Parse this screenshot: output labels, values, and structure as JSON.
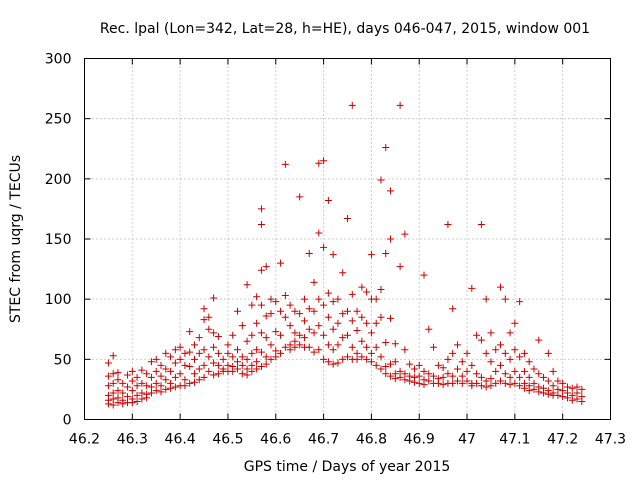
{
  "chart_data": {
    "type": "scatter",
    "title": "Rec. lpal (Lon=342, Lat=28, h=HE), days 046-047, 2015, window 001",
    "xlabel": "GPS time / Days of year 2015",
    "ylabel": "STEC from uqrg / TECUs",
    "xlim": [
      46.2,
      47.3
    ],
    "ylim": [
      0,
      300
    ],
    "xticks": [
      "46.2",
      "46.3",
      "46.4",
      "46.5",
      "46.6",
      "46.7",
      "46.8",
      "46.9",
      "47",
      "47.1",
      "47.2",
      "47.3"
    ],
    "yticks": [
      "0",
      "50",
      "100",
      "150",
      "200",
      "250",
      "300"
    ],
    "grid": true,
    "marker": "plus",
    "color": "#cc0000",
    "points": [
      [
        46.25,
        47
      ],
      [
        46.26,
        53
      ],
      [
        46.25,
        36
      ],
      [
        46.25,
        28
      ],
      [
        46.25,
        20
      ],
      [
        46.25,
        16
      ],
      [
        46.25,
        13
      ],
      [
        46.26,
        38
      ],
      [
        46.26,
        30
      ],
      [
        46.26,
        22
      ],
      [
        46.26,
        17
      ],
      [
        46.26,
        12
      ],
      [
        46.27,
        39
      ],
      [
        46.27,
        33
      ],
      [
        46.27,
        24
      ],
      [
        46.27,
        18
      ],
      [
        46.27,
        14
      ],
      [
        46.28,
        30
      ],
      [
        46.28,
        22
      ],
      [
        46.28,
        16
      ],
      [
        46.28,
        13
      ],
      [
        46.29,
        37
      ],
      [
        46.29,
        27
      ],
      [
        46.29,
        19
      ],
      [
        46.29,
        14
      ],
      [
        46.3,
        40
      ],
      [
        46.3,
        32
      ],
      [
        46.3,
        24
      ],
      [
        46.3,
        17
      ],
      [
        46.3,
        14
      ],
      [
        46.31,
        35
      ],
      [
        46.31,
        28
      ],
      [
        46.31,
        20
      ],
      [
        46.31,
        15
      ],
      [
        46.32,
        41
      ],
      [
        46.32,
        30
      ],
      [
        46.32,
        22
      ],
      [
        46.32,
        17
      ],
      [
        46.33,
        38
      ],
      [
        46.33,
        28
      ],
      [
        46.33,
        21
      ],
      [
        46.33,
        18
      ],
      [
        46.34,
        48
      ],
      [
        46.34,
        35
      ],
      [
        46.34,
        27
      ],
      [
        46.34,
        22
      ],
      [
        46.35,
        50
      ],
      [
        46.35,
        40
      ],
      [
        46.35,
        30
      ],
      [
        46.35,
        24
      ],
      [
        46.36,
        45
      ],
      [
        46.36,
        36
      ],
      [
        46.36,
        28
      ],
      [
        46.36,
        23
      ],
      [
        46.37,
        55
      ],
      [
        46.37,
        42
      ],
      [
        46.37,
        33
      ],
      [
        46.37,
        25
      ],
      [
        46.38,
        52
      ],
      [
        46.38,
        40
      ],
      [
        46.38,
        30
      ],
      [
        46.38,
        26
      ],
      [
        46.39,
        58
      ],
      [
        46.39,
        47
      ],
      [
        46.39,
        35
      ],
      [
        46.39,
        27
      ],
      [
        46.4,
        60
      ],
      [
        46.4,
        50
      ],
      [
        46.4,
        38
      ],
      [
        46.4,
        28
      ],
      [
        46.41,
        55
      ],
      [
        46.41,
        45
      ],
      [
        46.41,
        33
      ],
      [
        46.41,
        28
      ],
      [
        46.42,
        73
      ],
      [
        46.42,
        56
      ],
      [
        46.42,
        44
      ],
      [
        46.42,
        30
      ],
      [
        46.43,
        62
      ],
      [
        46.43,
        50
      ],
      [
        46.43,
        38
      ],
      [
        46.43,
        31
      ],
      [
        46.44,
        68
      ],
      [
        46.44,
        55
      ],
      [
        46.44,
        42
      ],
      [
        46.44,
        33
      ],
      [
        46.45,
        92
      ],
      [
        46.45,
        83
      ],
      [
        46.45,
        58
      ],
      [
        46.45,
        45
      ],
      [
        46.45,
        35
      ],
      [
        46.46,
        85
      ],
      [
        46.46,
        75
      ],
      [
        46.46,
        52
      ],
      [
        46.46,
        40
      ],
      [
        46.47,
        101
      ],
      [
        46.47,
        72
      ],
      [
        46.47,
        60
      ],
      [
        46.47,
        47
      ],
      [
        46.47,
        37
      ],
      [
        46.48,
        69
      ],
      [
        46.48,
        55
      ],
      [
        46.48,
        45
      ],
      [
        46.48,
        38
      ],
      [
        46.49,
        50
      ],
      [
        46.49,
        42
      ],
      [
        46.49,
        40
      ],
      [
        46.5,
        62
      ],
      [
        46.5,
        55
      ],
      [
        46.5,
        45
      ],
      [
        46.5,
        40
      ],
      [
        46.51,
        70
      ],
      [
        46.51,
        52
      ],
      [
        46.51,
        44
      ],
      [
        46.51,
        40
      ],
      [
        46.52,
        90
      ],
      [
        46.52,
        58
      ],
      [
        46.52,
        48
      ],
      [
        46.52,
        42
      ],
      [
        46.53,
        78
      ],
      [
        46.53,
        52
      ],
      [
        46.53,
        45
      ],
      [
        46.53,
        38
      ],
      [
        46.54,
        112
      ],
      [
        46.54,
        65
      ],
      [
        46.54,
        50
      ],
      [
        46.54,
        42
      ],
      [
        46.54,
        37
      ],
      [
        46.55,
        95
      ],
      [
        46.55,
        70
      ],
      [
        46.55,
        55
      ],
      [
        46.55,
        45
      ],
      [
        46.55,
        40
      ],
      [
        46.56,
        102
      ],
      [
        46.56,
        80
      ],
      [
        46.56,
        58
      ],
      [
        46.56,
        48
      ],
      [
        46.56,
        42
      ],
      [
        46.57,
        175
      ],
      [
        46.57,
        162
      ],
      [
        46.57,
        124
      ],
      [
        46.57,
        95
      ],
      [
        46.57,
        72
      ],
      [
        46.57,
        56
      ],
      [
        46.57,
        44
      ],
      [
        46.58,
        127
      ],
      [
        46.58,
        86
      ],
      [
        46.58,
        68
      ],
      [
        46.58,
        52
      ],
      [
        46.58,
        46
      ],
      [
        46.59,
        100
      ],
      [
        46.59,
        88
      ],
      [
        46.59,
        62
      ],
      [
        46.59,
        50
      ],
      [
        46.6,
        98
      ],
      [
        46.6,
        73
      ],
      [
        46.6,
        57
      ],
      [
        46.6,
        52
      ],
      [
        46.61,
        130
      ],
      [
        46.61,
        90
      ],
      [
        46.61,
        70
      ],
      [
        46.61,
        55
      ],
      [
        46.62,
        212
      ],
      [
        46.62,
        103
      ],
      [
        46.62,
        85
      ],
      [
        46.62,
        60
      ],
      [
        46.63,
        95
      ],
      [
        46.63,
        78
      ],
      [
        46.63,
        62
      ],
      [
        46.63,
        58
      ],
      [
        46.64,
        90
      ],
      [
        46.64,
        72
      ],
      [
        46.64,
        65
      ],
      [
        46.64,
        60
      ],
      [
        46.65,
        185
      ],
      [
        46.65,
        88
      ],
      [
        46.65,
        70
      ],
      [
        46.65,
        62
      ],
      [
        46.66,
        100
      ],
      [
        46.66,
        82
      ],
      [
        46.66,
        68
      ],
      [
        46.66,
        60
      ],
      [
        46.67,
        138
      ],
      [
        46.67,
        92
      ],
      [
        46.67,
        75
      ],
      [
        46.67,
        60
      ],
      [
        46.68,
        114
      ],
      [
        46.68,
        90
      ],
      [
        46.68,
        72
      ],
      [
        46.68,
        56
      ],
      [
        46.69,
        213
      ],
      [
        46.69,
        155
      ],
      [
        46.69,
        100
      ],
      [
        46.69,
        78
      ],
      [
        46.69,
        58
      ],
      [
        46.7,
        215
      ],
      [
        46.7,
        143
      ],
      [
        46.7,
        95
      ],
      [
        46.7,
        70
      ],
      [
        46.7,
        50
      ],
      [
        46.71,
        182
      ],
      [
        46.71,
        105
      ],
      [
        46.71,
        85
      ],
      [
        46.71,
        62
      ],
      [
        46.71,
        48
      ],
      [
        46.72,
        137
      ],
      [
        46.72,
        98
      ],
      [
        46.72,
        75
      ],
      [
        46.72,
        58
      ],
      [
        46.72,
        46
      ],
      [
        46.73,
        100
      ],
      [
        46.73,
        80
      ],
      [
        46.73,
        62
      ],
      [
        46.73,
        47
      ],
      [
        46.74,
        122
      ],
      [
        46.74,
        88
      ],
      [
        46.74,
        68
      ],
      [
        46.74,
        50
      ],
      [
        46.75,
        167
      ],
      [
        46.75,
        90
      ],
      [
        46.75,
        70
      ],
      [
        46.75,
        52
      ],
      [
        46.76,
        261
      ],
      [
        46.76,
        104
      ],
      [
        46.76,
        82
      ],
      [
        46.76,
        60
      ],
      [
        46.76,
        50
      ],
      [
        46.77,
        90
      ],
      [
        46.77,
        74
      ],
      [
        46.77,
        55
      ],
      [
        46.77,
        50
      ],
      [
        46.78,
        110
      ],
      [
        46.78,
        85
      ],
      [
        46.78,
        65
      ],
      [
        46.78,
        52
      ],
      [
        46.79,
        106
      ],
      [
        46.79,
        80
      ],
      [
        46.79,
        60
      ],
      [
        46.79,
        50
      ],
      [
        46.8,
        137
      ],
      [
        46.8,
        100
      ],
      [
        46.8,
        72
      ],
      [
        46.8,
        55
      ],
      [
        46.8,
        48
      ],
      [
        46.81,
        100
      ],
      [
        46.81,
        80
      ],
      [
        46.81,
        60
      ],
      [
        46.81,
        45
      ],
      [
        46.82,
        199
      ],
      [
        46.82,
        108
      ],
      [
        46.82,
        85
      ],
      [
        46.82,
        52
      ],
      [
        46.82,
        42
      ],
      [
        46.83,
        226
      ],
      [
        46.83,
        138
      ],
      [
        46.83,
        64
      ],
      [
        46.83,
        44
      ],
      [
        46.83,
        38
      ],
      [
        46.84,
        190
      ],
      [
        46.84,
        150
      ],
      [
        46.84,
        84
      ],
      [
        46.84,
        46
      ],
      [
        46.84,
        36
      ],
      [
        46.85,
        63
      ],
      [
        46.85,
        48
      ],
      [
        46.85,
        38
      ],
      [
        46.85,
        34
      ],
      [
        46.86,
        261
      ],
      [
        46.86,
        127
      ],
      [
        46.86,
        40
      ],
      [
        46.86,
        35
      ],
      [
        46.87,
        154
      ],
      [
        46.87,
        58
      ],
      [
        46.87,
        38
      ],
      [
        46.87,
        33
      ],
      [
        46.88,
        46
      ],
      [
        46.88,
        36
      ],
      [
        46.88,
        32
      ],
      [
        46.89,
        42
      ],
      [
        46.89,
        35
      ],
      [
        46.89,
        31
      ],
      [
        46.9,
        45
      ],
      [
        46.9,
        36
      ],
      [
        46.9,
        30
      ],
      [
        46.91,
        120
      ],
      [
        46.91,
        40
      ],
      [
        46.91,
        33
      ],
      [
        46.91,
        29
      ],
      [
        46.92,
        75
      ],
      [
        46.92,
        38
      ],
      [
        46.92,
        32
      ],
      [
        46.93,
        60
      ],
      [
        46.93,
        36
      ],
      [
        46.93,
        30
      ],
      [
        46.94,
        45
      ],
      [
        46.94,
        34
      ],
      [
        46.94,
        30
      ],
      [
        46.95,
        43
      ],
      [
        46.95,
        35
      ],
      [
        46.95,
        29
      ],
      [
        46.96,
        162
      ],
      [
        46.96,
        50
      ],
      [
        46.96,
        38
      ],
      [
        46.96,
        30
      ],
      [
        46.97,
        92
      ],
      [
        46.97,
        55
      ],
      [
        46.97,
        36
      ],
      [
        46.97,
        30
      ],
      [
        46.98,
        62
      ],
      [
        46.98,
        42
      ],
      [
        46.98,
        32
      ],
      [
        46.99,
        48
      ],
      [
        46.99,
        36
      ],
      [
        46.99,
        30
      ],
      [
        47.0,
        55
      ],
      [
        47.0,
        40
      ],
      [
        47.0,
        32
      ],
      [
        47.01,
        109
      ],
      [
        47.01,
        45
      ],
      [
        47.01,
        30
      ],
      [
        47.01,
        28
      ],
      [
        47.02,
        70
      ],
      [
        47.02,
        38
      ],
      [
        47.02,
        30
      ],
      [
        47.03,
        162
      ],
      [
        47.03,
        66
      ],
      [
        47.03,
        35
      ],
      [
        47.03,
        28
      ],
      [
        47.04,
        100
      ],
      [
        47.04,
        55
      ],
      [
        47.04,
        32
      ],
      [
        47.04,
        27
      ],
      [
        47.05,
        72
      ],
      [
        47.05,
        48
      ],
      [
        47.05,
        34
      ],
      [
        47.05,
        28
      ],
      [
        47.06,
        58
      ],
      [
        47.06,
        40
      ],
      [
        47.06,
        30
      ],
      [
        47.07,
        110
      ],
      [
        47.07,
        62
      ],
      [
        47.07,
        45
      ],
      [
        47.07,
        32
      ],
      [
        47.08,
        100
      ],
      [
        47.08,
        55
      ],
      [
        47.08,
        38
      ],
      [
        47.08,
        30
      ],
      [
        47.09,
        72
      ],
      [
        47.09,
        50
      ],
      [
        47.09,
        35
      ],
      [
        47.09,
        29
      ],
      [
        47.1,
        80
      ],
      [
        47.1,
        58
      ],
      [
        47.1,
        40
      ],
      [
        47.1,
        30
      ],
      [
        47.11,
        98
      ],
      [
        47.11,
        52
      ],
      [
        47.11,
        35
      ],
      [
        47.11,
        28
      ],
      [
        47.12,
        55
      ],
      [
        47.12,
        40
      ],
      [
        47.12,
        30
      ],
      [
        47.12,
        26
      ],
      [
        47.13,
        48
      ],
      [
        47.13,
        35
      ],
      [
        47.13,
        28
      ],
      [
        47.13,
        24
      ],
      [
        47.14,
        42
      ],
      [
        47.14,
        30
      ],
      [
        47.14,
        25
      ],
      [
        47.15,
        66
      ],
      [
        47.15,
        38
      ],
      [
        47.15,
        27
      ],
      [
        47.15,
        23
      ],
      [
        47.16,
        35
      ],
      [
        47.16,
        26
      ],
      [
        47.16,
        22
      ],
      [
        47.17,
        55
      ],
      [
        47.17,
        32
      ],
      [
        47.17,
        24
      ],
      [
        47.17,
        21
      ],
      [
        47.18,
        40
      ],
      [
        47.18,
        28
      ],
      [
        47.18,
        22
      ],
      [
        47.18,
        20
      ],
      [
        47.19,
        32
      ],
      [
        47.19,
        25
      ],
      [
        47.19,
        20
      ],
      [
        47.2,
        30
      ],
      [
        47.2,
        24
      ],
      [
        47.2,
        19
      ],
      [
        47.21,
        27
      ],
      [
        47.21,
        22
      ],
      [
        47.21,
        18
      ],
      [
        47.22,
        26
      ],
      [
        47.22,
        20
      ],
      [
        47.22,
        16
      ],
      [
        47.23,
        27
      ],
      [
        47.23,
        22
      ],
      [
        47.23,
        17
      ],
      [
        47.24,
        25
      ],
      [
        47.24,
        19
      ],
      [
        47.24,
        15
      ]
    ]
  }
}
